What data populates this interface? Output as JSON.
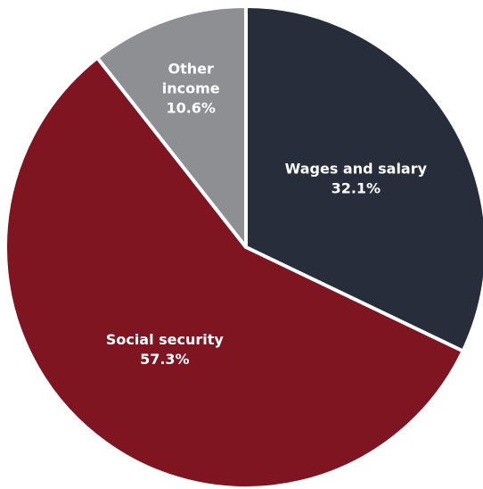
{
  "chart_data": {
    "type": "pie",
    "title": "",
    "start_angle_deg": 0,
    "direction": "clockwise",
    "slices": [
      {
        "name": "wages",
        "label_lines": [
          "Wages and salary"
        ],
        "value_label": "32.1%",
        "value": 32.1,
        "color": "#272d3b"
      },
      {
        "name": "social-security",
        "label_lines": [
          "Social security"
        ],
        "value_label": "57.3%",
        "value": 57.3,
        "color": "#7e1520"
      },
      {
        "name": "other-income",
        "label_lines": [
          "Other",
          "income"
        ],
        "value_label": "10.6%",
        "value": 10.6,
        "color": "#8e8f93"
      }
    ],
    "slice_border_color": "#ffffff",
    "label_color": "#ffffff",
    "legend": "none"
  }
}
